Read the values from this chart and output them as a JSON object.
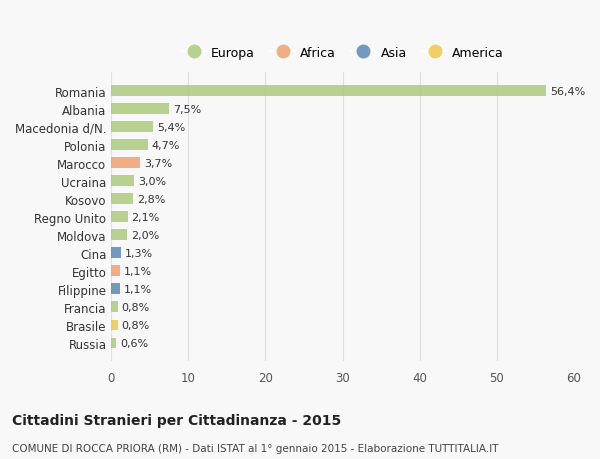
{
  "categories": [
    "Romania",
    "Albania",
    "Macedonia d/N.",
    "Polonia",
    "Marocco",
    "Ucraina",
    "Kosovo",
    "Regno Unito",
    "Moldova",
    "Cina",
    "Egitto",
    "Filippine",
    "Francia",
    "Brasile",
    "Russia"
  ],
  "values": [
    56.4,
    7.5,
    5.4,
    4.7,
    3.7,
    3.0,
    2.8,
    2.1,
    2.0,
    1.3,
    1.1,
    1.1,
    0.8,
    0.8,
    0.6
  ],
  "labels": [
    "56,4%",
    "7,5%",
    "5,4%",
    "4,7%",
    "3,7%",
    "3,0%",
    "2,8%",
    "2,1%",
    "2,0%",
    "1,3%",
    "1,1%",
    "1,1%",
    "0,8%",
    "0,8%",
    "0,6%"
  ],
  "continents": [
    "Europa",
    "Europa",
    "Europa",
    "Europa",
    "Africa",
    "Europa",
    "Europa",
    "Europa",
    "Europa",
    "Asia",
    "Africa",
    "Asia",
    "Europa",
    "America",
    "Europa"
  ],
  "colors": {
    "Europa": "#adc97e",
    "Africa": "#f0a070",
    "Asia": "#5b8ab5",
    "America": "#f0c84a"
  },
  "legend_order": [
    "Europa",
    "Africa",
    "Asia",
    "America"
  ],
  "title": "Cittadini Stranieri per Cittadinanza - 2015",
  "subtitle": "COMUNE DI ROCCA PRIORA (RM) - Dati ISTAT al 1° gennaio 2015 - Elaborazione TUTTITALIA.IT",
  "xlim": [
    0,
    60
  ],
  "xticks": [
    0,
    10,
    20,
    30,
    40,
    50,
    60
  ],
  "background_color": "#f8f8f8",
  "grid_color": "#e0e0e0"
}
